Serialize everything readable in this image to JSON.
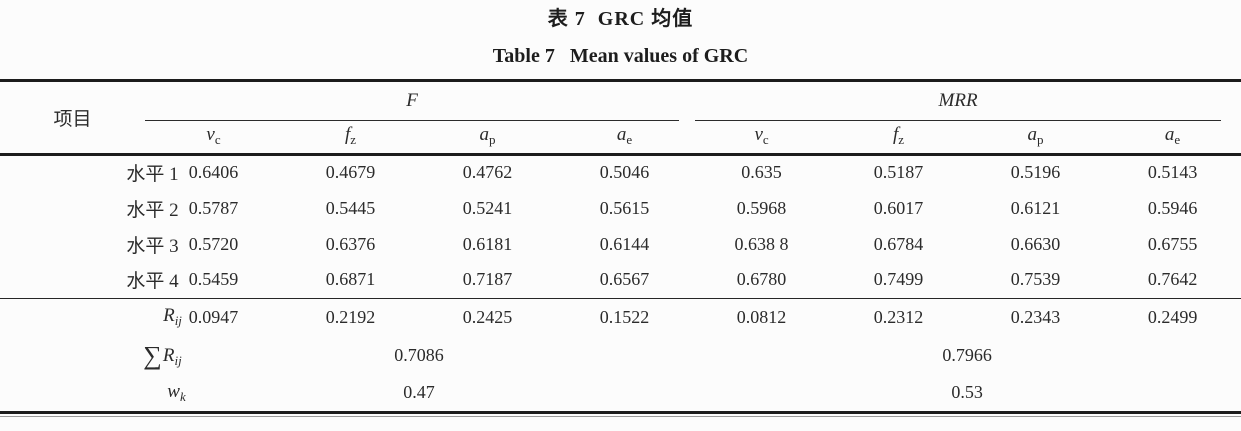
{
  "page": {
    "title_zh": "表 7  GRC 均值",
    "title_en": "Table 7   Mean values of GRC"
  },
  "table": {
    "item_header": "项目",
    "group_f": "F",
    "group_mrr": "MRR",
    "subheaders": [
      {
        "base": "v",
        "sub": "c"
      },
      {
        "base": "f",
        "sub": "z"
      },
      {
        "base": "a",
        "sub": "p"
      },
      {
        "base": "a",
        "sub": "e"
      },
      {
        "base": "v",
        "sub": "c"
      },
      {
        "base": "f",
        "sub": "z"
      },
      {
        "base": "a",
        "sub": "p"
      },
      {
        "base": "a",
        "sub": "e"
      }
    ],
    "level_rows": [
      {
        "label": "水平 1",
        "values": [
          "0.6406",
          "0.4679",
          "0.4762",
          "0.5046",
          "0.635",
          "0.5187",
          "0.5196",
          "0.5143"
        ]
      },
      {
        "label": "水平 2",
        "values": [
          "0.5787",
          "0.5445",
          "0.5241",
          "0.5615",
          "0.5968",
          "0.6017",
          "0.6121",
          "0.5946"
        ]
      },
      {
        "label": "水平 3",
        "values": [
          "0.5720",
          "0.6376",
          "0.6181",
          "0.6144",
          "0.638 8",
          "0.6784",
          "0.6630",
          "0.6755"
        ]
      },
      {
        "label": "水平 4",
        "values": [
          "0.5459",
          "0.6871",
          "0.7187",
          "0.6567",
          "0.6780",
          "0.7499",
          "0.7539",
          "0.7642"
        ]
      }
    ],
    "rij_row": {
      "label_base": "R",
      "label_sub": "ij",
      "values": [
        "0.0947",
        "0.2192",
        "0.2425",
        "0.1522",
        "0.0812",
        "0.2312",
        "0.2343",
        "0.2499"
      ]
    },
    "sum_row": {
      "sigma": "∑",
      "label_base": "R",
      "label_sub": "ij",
      "f_value": "0.7086",
      "mrr_value": "0.7966"
    },
    "wk_row": {
      "label_base": "w",
      "label_sub": "k",
      "f_value": "0.47",
      "mrr_value": "0.53"
    }
  },
  "colors": {
    "text": "#2b2b2b",
    "rule": "#1c1c1c",
    "background": "#fcfcfc"
  }
}
